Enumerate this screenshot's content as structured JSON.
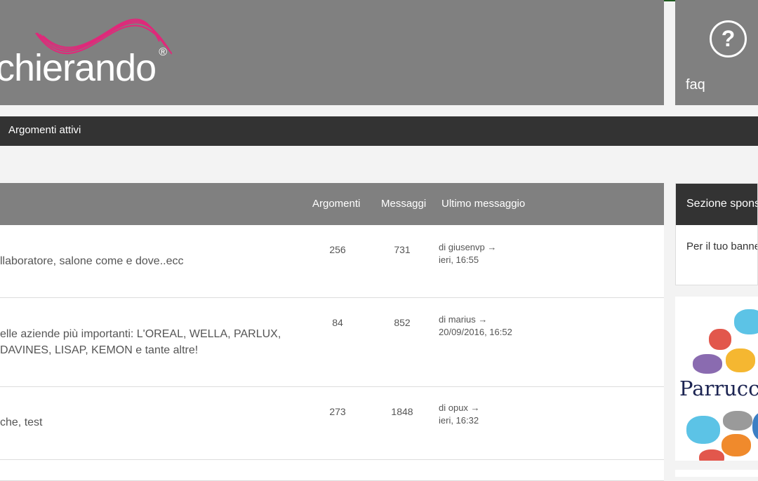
{
  "header": {
    "logo_text": "chierando",
    "logo_mark": "®",
    "faq_label": "faq",
    "faq_icon": "question-circle-icon"
  },
  "nav": {
    "active_topics": "Argomenti attivi"
  },
  "table": {
    "columns": {
      "topics": "Argomenti",
      "posts": "Messaggi",
      "last_post": "Ultimo messaggio"
    },
    "rows": [
      {
        "desc": "llaboratore, salone come e dove..ecc",
        "topics": "256",
        "posts": "731",
        "last_by": "di giusenvp",
        "last_time": "ieri, 16:55"
      },
      {
        "desc": "elle aziende più importanti: L'OREAL, WELLA, PARLUX,",
        "desc2": "DAVINES, LISAP, KEMON e tante altre!",
        "topics": "84",
        "posts": "852",
        "last_by": "di marius",
        "last_time": "20/09/2016, 16:52"
      },
      {
        "desc": "che, test",
        "topics": "273",
        "posts": "1848",
        "last_by": "di opux",
        "last_time": "ieri, 16:32"
      }
    ]
  },
  "sidebar": {
    "sponsor_title": "Sezione sponsor",
    "sponsor_text": "Per il tuo banner",
    "banner_text": "Parrucchieri"
  },
  "colors": {
    "header": "#808080",
    "nav": "#333333",
    "logo_wave": "#e0287a"
  }
}
